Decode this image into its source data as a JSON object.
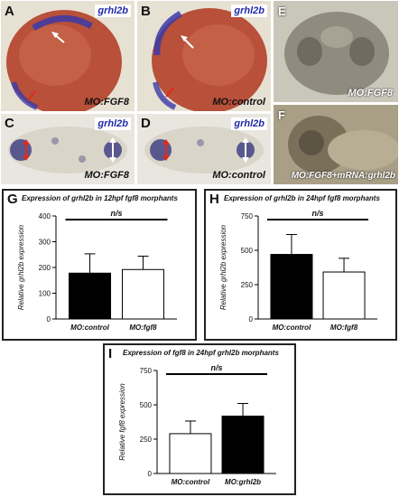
{
  "panels": {
    "A": {
      "letter": "A",
      "gene": "grhl2b",
      "caption": "MO:FGF8"
    },
    "B": {
      "letter": "B",
      "gene": "grhl2b",
      "caption": "MO:control"
    },
    "C": {
      "letter": "C",
      "gene": "grhl2b",
      "caption": "MO:FGF8"
    },
    "D": {
      "letter": "D",
      "gene": "grhl2b",
      "caption": "MO:control"
    },
    "E": {
      "letter": "E",
      "caption": "MO:FGF8"
    },
    "F": {
      "letter": "F",
      "caption": "MO:FGF8+mRNA:grhl2b"
    }
  },
  "colors": {
    "gene_label": "#1f2aa8",
    "arrow_white": "#ffffff",
    "arrow_red": "#e02a1a",
    "embryo": "#b8503a"
  },
  "chart_data": [
    {
      "letter": "G",
      "type": "bar",
      "title": "Expression of grhl2b in 12hpf fgf8 morphants",
      "ylabel": "Relative grhl2b expression",
      "categories": [
        "MO:control",
        "MO:fgf8"
      ],
      "values": [
        178,
        192
      ],
      "errors": [
        75,
        52
      ],
      "fills": [
        "#000000",
        "#ffffff"
      ],
      "ylim": [
        0,
        400
      ],
      "yticks": [
        "0",
        "100",
        "200",
        "300",
        "400"
      ],
      "significance": "n/s"
    },
    {
      "letter": "H",
      "type": "bar",
      "title": "Expression of grhl2b in 24hpf fgf8 morphants",
      "ylabel": "Relative grhl2b expression",
      "categories": [
        "MO:control",
        "MO:fgf8"
      ],
      "values": [
        470,
        342
      ],
      "errors": [
        145,
        100
      ],
      "fills": [
        "#000000",
        "#ffffff"
      ],
      "ylim": [
        0,
        750
      ],
      "yticks": [
        "0",
        "250",
        "500",
        "750"
      ],
      "significance": "n/s"
    },
    {
      "letter": "I",
      "type": "bar",
      "title": "Expression of fgf8 in 24hpf grhl2b morphants",
      "ylabel": "Relative fgf8 expression",
      "categories": [
        "MO:control",
        "MO:grhl2b"
      ],
      "values": [
        290,
        418
      ],
      "errors": [
        92,
        92
      ],
      "fills": [
        "#ffffff",
        "#000000"
      ],
      "ylim": [
        0,
        750
      ],
      "yticks": [
        "0",
        "250",
        "500",
        "750"
      ],
      "significance": "n/s"
    }
  ]
}
